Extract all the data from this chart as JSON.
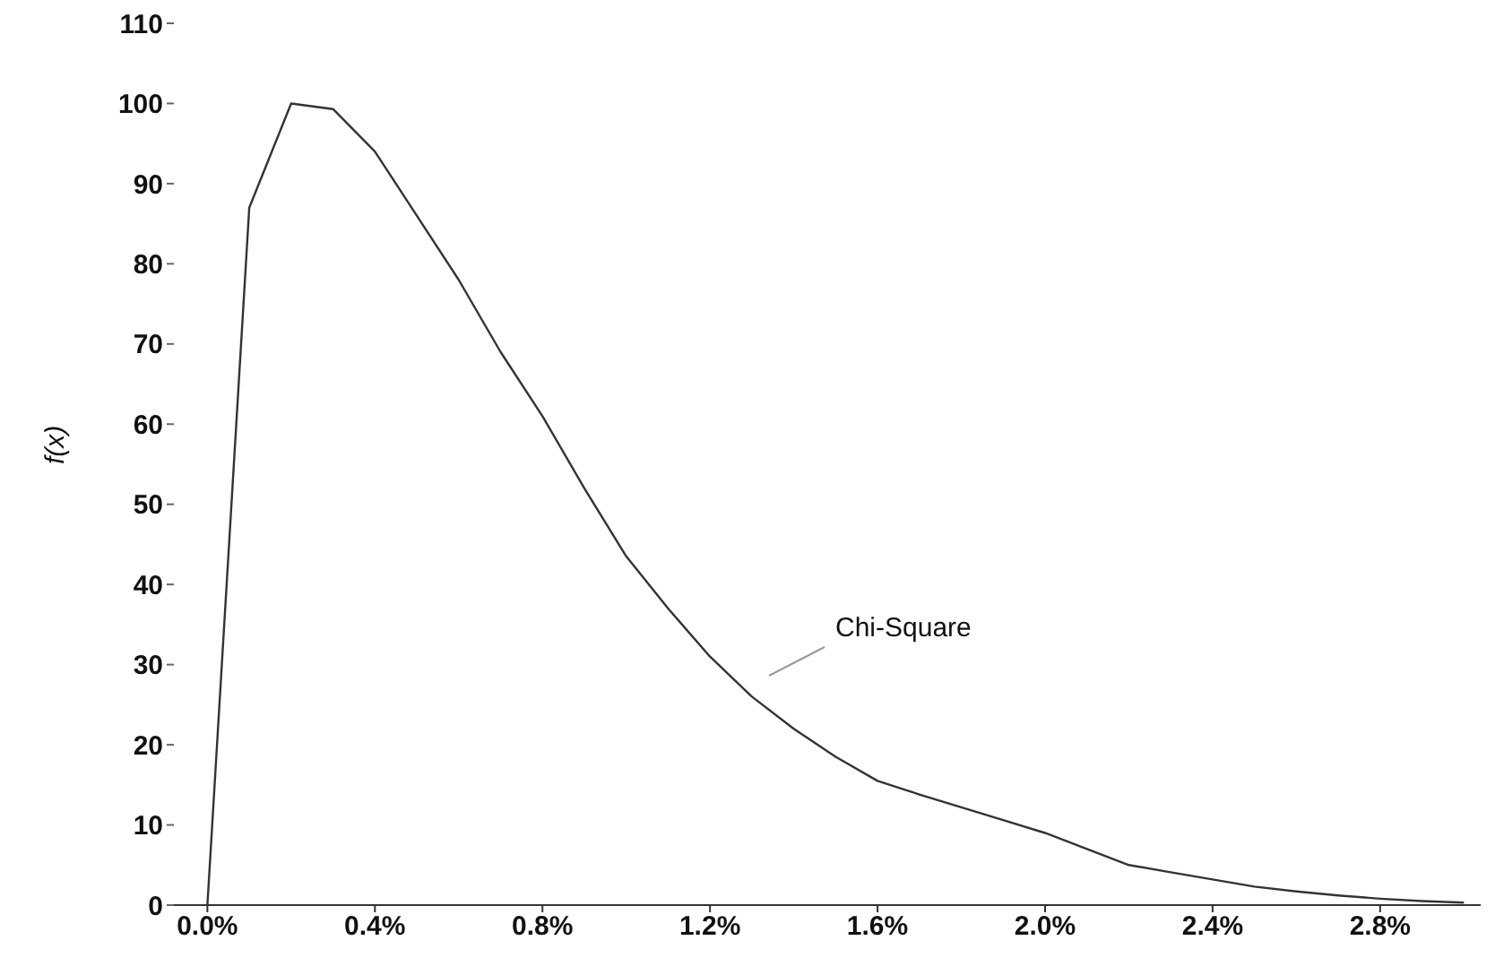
{
  "chart_data": {
    "type": "line",
    "ylabel": "f(x)",
    "x": [
      0,
      0.1,
      0.2,
      0.3,
      0.4,
      0.5,
      0.6,
      0.7,
      0.8,
      0.9,
      1.0,
      1.1,
      1.2,
      1.3,
      1.4,
      1.5,
      1.6,
      1.7,
      1.8,
      1.9,
      2.0,
      2.1,
      2.2,
      2.3,
      2.4,
      2.5,
      2.6,
      2.7,
      2.8,
      2.9,
      3.0
    ],
    "series": [
      {
        "color": "#333333",
        "values": [
          0,
          87,
          100,
          99.3,
          94,
          86,
          78,
          69,
          61,
          52,
          43.5,
          37,
          31,
          26,
          22,
          18.5,
          15.5,
          13.8,
          12.2,
          10.6,
          9,
          7,
          5,
          4.1,
          3.2,
          2.3,
          1.7,
          1.2,
          0.8,
          0.5,
          0.3
        ]
      }
    ],
    "xlim": [
      -0.08,
      3.04
    ],
    "xticks": [
      {
        "value": 0,
        "label": "0.0%"
      },
      {
        "value": 0.4,
        "label": "0.4%"
      },
      {
        "value": 0.8,
        "label": "0.8%"
      },
      {
        "value": 1.2,
        "label": "1.2%"
      },
      {
        "value": 1.6,
        "label": "1.6%"
      },
      {
        "value": 2.0,
        "label": "2.0%"
      },
      {
        "value": 2.4,
        "label": "2.4%"
      },
      {
        "value": 2.8,
        "label": "2.8%"
      }
    ],
    "ylim": [
      0,
      110
    ],
    "yticks": [
      0,
      10,
      20,
      30,
      40,
      50,
      60,
      70,
      80,
      90,
      100,
      110
    ],
    "annotations": [
      "Chi-Square"
    ],
    "grid": false,
    "legend": false,
    "marker": "none",
    "line_style": "solid"
  }
}
